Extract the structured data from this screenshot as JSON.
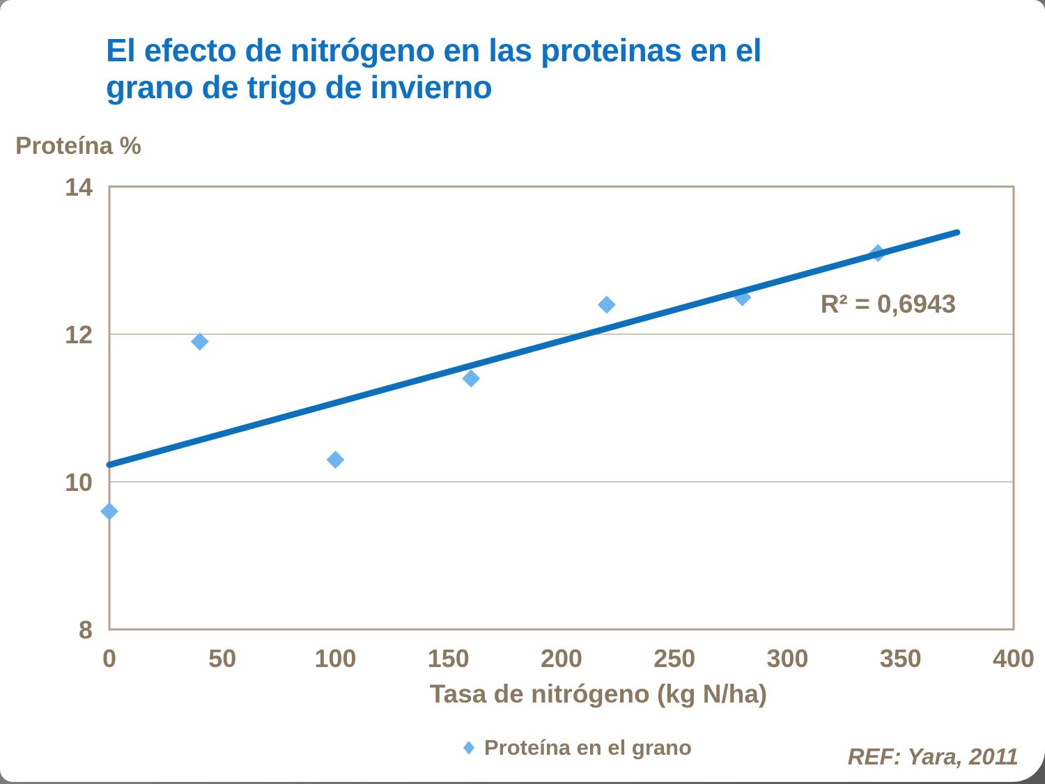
{
  "header": {
    "title_lines": [
      "El efecto de nitrógeno en las proteinas en el",
      "grano de trigo de invierno"
    ]
  },
  "footer": {
    "reference": "REF: Yara, 2011"
  },
  "colors": {
    "title_blue": "#0d72c6",
    "trend_line_blue": "#0d70bd",
    "marker_light_blue": "#6cb5f0",
    "axis_text_brown": "#8a7960",
    "plot_frame_tan": "#b2a190",
    "gridline_tan": "#bfb1a1",
    "page_background": "#ffffff"
  },
  "chart_data": {
    "type": "scatter",
    "title": "El efecto de nitrógeno en las proteinas en el grano de trigo de invierno",
    "xlabel": "Tasa de nitrógeno (kg N/ha)",
    "ylabel": "Proteína %",
    "xlim": [
      0,
      400
    ],
    "ylim": [
      8,
      14
    ],
    "x_ticks": [
      0,
      50,
      100,
      150,
      200,
      250,
      300,
      350,
      400
    ],
    "y_ticks": [
      8,
      10,
      12,
      14
    ],
    "gridlines_y": [
      10,
      12
    ],
    "grid": "horizontal only",
    "legend_position": "bottom-center",
    "series": [
      {
        "name": "Proteína en el grano",
        "marker": "diamond",
        "x": [
          0,
          40,
          100,
          160,
          220,
          280,
          340
        ],
        "y": [
          9.6,
          11.9,
          10.3,
          11.4,
          12.4,
          12.5,
          13.1
        ]
      }
    ],
    "trendline": {
      "type": "linear",
      "x_start": 0,
      "y_start": 10.23,
      "x_end": 375,
      "y_end": 13.38
    },
    "annotation": {
      "text": "R² = 0,6943"
    }
  }
}
